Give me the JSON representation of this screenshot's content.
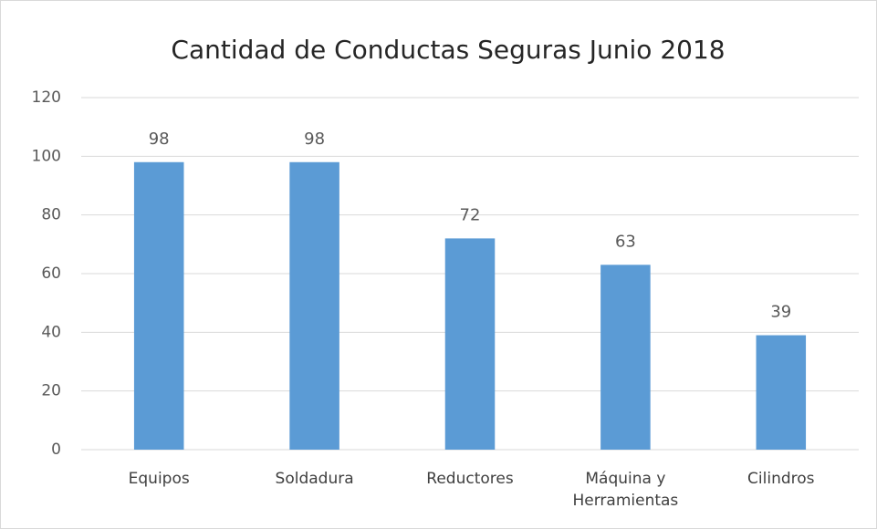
{
  "chart_data": {
    "type": "bar",
    "title": "Cantidad de Conductas Seguras Junio 2018",
    "categories": [
      "Equipos",
      "Soldadura",
      "Reductores",
      "Máquina y Herramientas",
      "Cilindros"
    ],
    "values": [
      98,
      98,
      72,
      63,
      39
    ],
    "color": "#5b9bd5",
    "ylim": [
      0,
      120
    ],
    "yticks": [
      0,
      20,
      40,
      60,
      80,
      100,
      120
    ],
    "grid": true
  }
}
